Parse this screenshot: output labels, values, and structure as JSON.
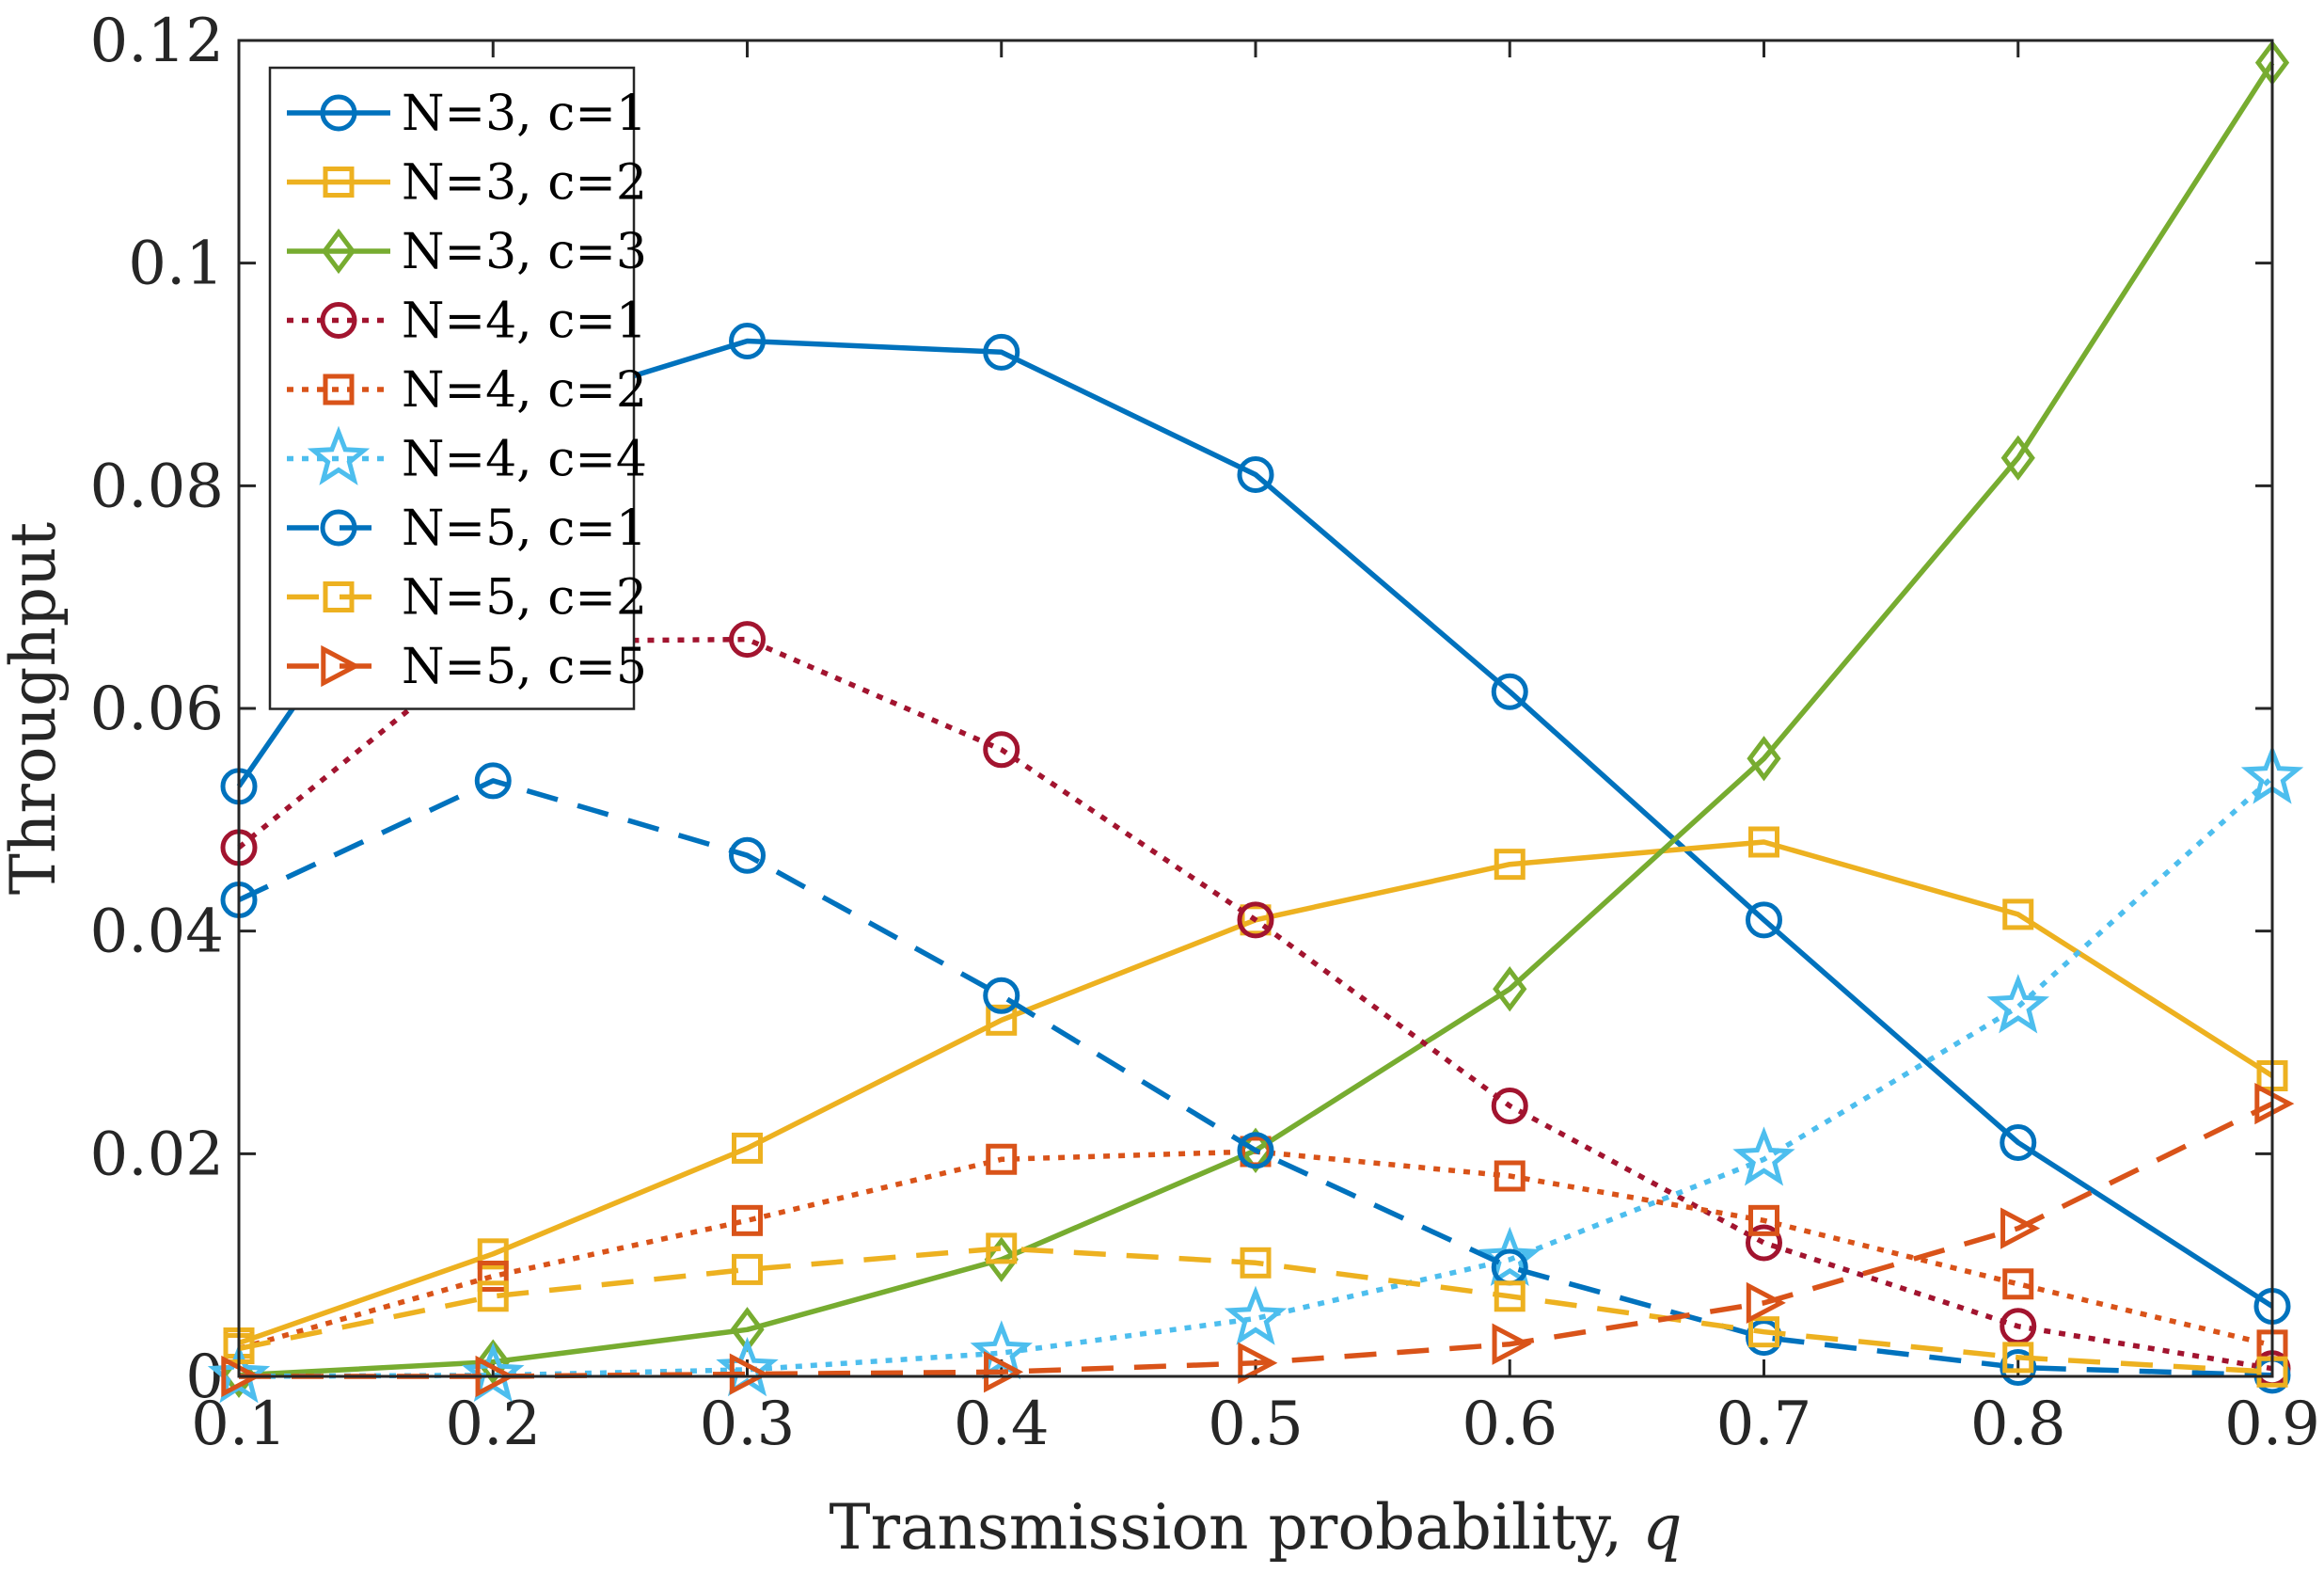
{
  "chart_data": {
    "type": "line",
    "title": "",
    "xlabel": "Transmission probability, ",
    "xlabel_var": "q",
    "ylabel": "Throughput",
    "xlim": [
      0.1,
      0.9
    ],
    "ylim": [
      0,
      0.12
    ],
    "xticks": [
      0.1,
      0.2,
      0.3,
      0.4,
      0.5,
      0.6,
      0.7,
      0.8,
      0.9
    ],
    "xtick_labels": [
      "0.1",
      "0.2",
      "0.3",
      "0.4",
      "0.5",
      "0.6",
      "0.7",
      "0.8",
      "0.9"
    ],
    "yticks": [
      0,
      0.02,
      0.04,
      0.06,
      0.08,
      0.1,
      0.12
    ],
    "ytick_labels": [
      "0",
      "0.02",
      "0.04",
      "0.06",
      "0.08",
      "0.1",
      "0.12"
    ],
    "grid": false,
    "legend_position": "top-left",
    "x": [
      0.1,
      0.2,
      0.3,
      0.4,
      0.5,
      0.6,
      0.7,
      0.8,
      0.9
    ],
    "series": [
      {
        "name": "N=3, c=1",
        "color": "#0072bd",
        "line": "solid",
        "marker": "circle",
        "values": [
          0.053,
          0.086,
          0.093,
          0.092,
          0.081,
          0.0615,
          0.041,
          0.021,
          0.0063
        ]
      },
      {
        "name": "N=3, c=2",
        "color": "#edb120",
        "line": "solid",
        "marker": "square",
        "values": [
          0.003,
          0.011,
          0.0205,
          0.032,
          0.041,
          0.046,
          0.048,
          0.0415,
          0.027
        ]
      },
      {
        "name": "N=3, c=3",
        "color": "#77ac30",
        "line": "solid",
        "marker": "diamond",
        "values": [
          0.0001,
          0.0013,
          0.0042,
          0.0105,
          0.0203,
          0.0348,
          0.0555,
          0.0825,
          0.118
        ]
      },
      {
        "name": "N=4, c=1",
        "color": "#a2142f",
        "line": "dotted",
        "marker": "circle",
        "values": [
          0.0475,
          0.066,
          0.0662,
          0.0563,
          0.041,
          0.0243,
          0.012,
          0.0045,
          0.0007
        ]
      },
      {
        "name": "N=4, c=2",
        "color": "#d95319",
        "line": "dotted",
        "marker": "square",
        "values": [
          0.0025,
          0.009,
          0.014,
          0.0195,
          0.0202,
          0.018,
          0.014,
          0.0083,
          0.0028
        ]
      },
      {
        "name": "N=4, c=4",
        "color": "#4dbeee",
        "line": "dotted",
        "marker": "star",
        "values": [
          0.0,
          0.0001,
          0.0006,
          0.0021,
          0.0052,
          0.0105,
          0.0195,
          0.0332,
          0.0538
        ]
      },
      {
        "name": "N=5, c=1",
        "color": "#0072bd",
        "line": "dashed",
        "marker": "circle",
        "values": [
          0.0428,
          0.0535,
          0.0468,
          0.0342,
          0.0203,
          0.0098,
          0.0035,
          0.0008,
          0.0001
        ]
      },
      {
        "name": "N=5, c=2",
        "color": "#edb120",
        "line": "dashed",
        "marker": "square",
        "values": [
          0.0025,
          0.0072,
          0.0096,
          0.0115,
          0.0102,
          0.0072,
          0.004,
          0.0017,
          0.0004
        ]
      },
      {
        "name": "N=5, c=5",
        "color": "#d95319",
        "line": "dashed",
        "marker": "triangle-right",
        "values": [
          0.0,
          0.0,
          0.0002,
          0.0004,
          0.0012,
          0.0029,
          0.0066,
          0.0133,
          0.0245
        ]
      }
    ]
  }
}
